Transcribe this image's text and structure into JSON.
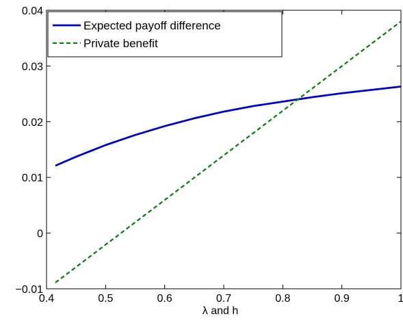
{
  "chart_data": {
    "type": "line",
    "title": "",
    "xlabel": "λ and h",
    "ylabel": "",
    "xlim": [
      0.4,
      1.0
    ],
    "ylim": [
      -0.01,
      0.04
    ],
    "x_ticks": [
      0.4,
      0.5,
      0.6,
      0.7,
      0.8,
      0.9,
      1.0
    ],
    "x_tick_labels": [
      "0.4",
      "0.5",
      "0.6",
      "0.7",
      "0.8",
      "0.9",
      "1"
    ],
    "y_ticks": [
      -0.01,
      0,
      0.01,
      0.02,
      0.03,
      0.04
    ],
    "y_tick_labels": [
      "−0.01",
      "0",
      "0.01",
      "0.02",
      "0.03",
      "0.04"
    ],
    "grid": false,
    "legend_position": "top-left",
    "series": [
      {
        "name": "Expected payoff difference",
        "color": "#0000cc",
        "style": "solid",
        "x": [
          0.415,
          0.45,
          0.5,
          0.55,
          0.6,
          0.65,
          0.7,
          0.75,
          0.8,
          0.85,
          0.9,
          0.95,
          1.0
        ],
        "y": [
          0.0121,
          0.0137,
          0.0158,
          0.0176,
          0.0192,
          0.0206,
          0.0218,
          0.0228,
          0.0236,
          0.0244,
          0.0251,
          0.0257,
          0.0263
        ]
      },
      {
        "name": "Private benefit",
        "color": "#008000",
        "style": "dashed",
        "x": [
          0.415,
          1.0
        ],
        "y": [
          -0.0089,
          0.038
        ]
      }
    ]
  }
}
